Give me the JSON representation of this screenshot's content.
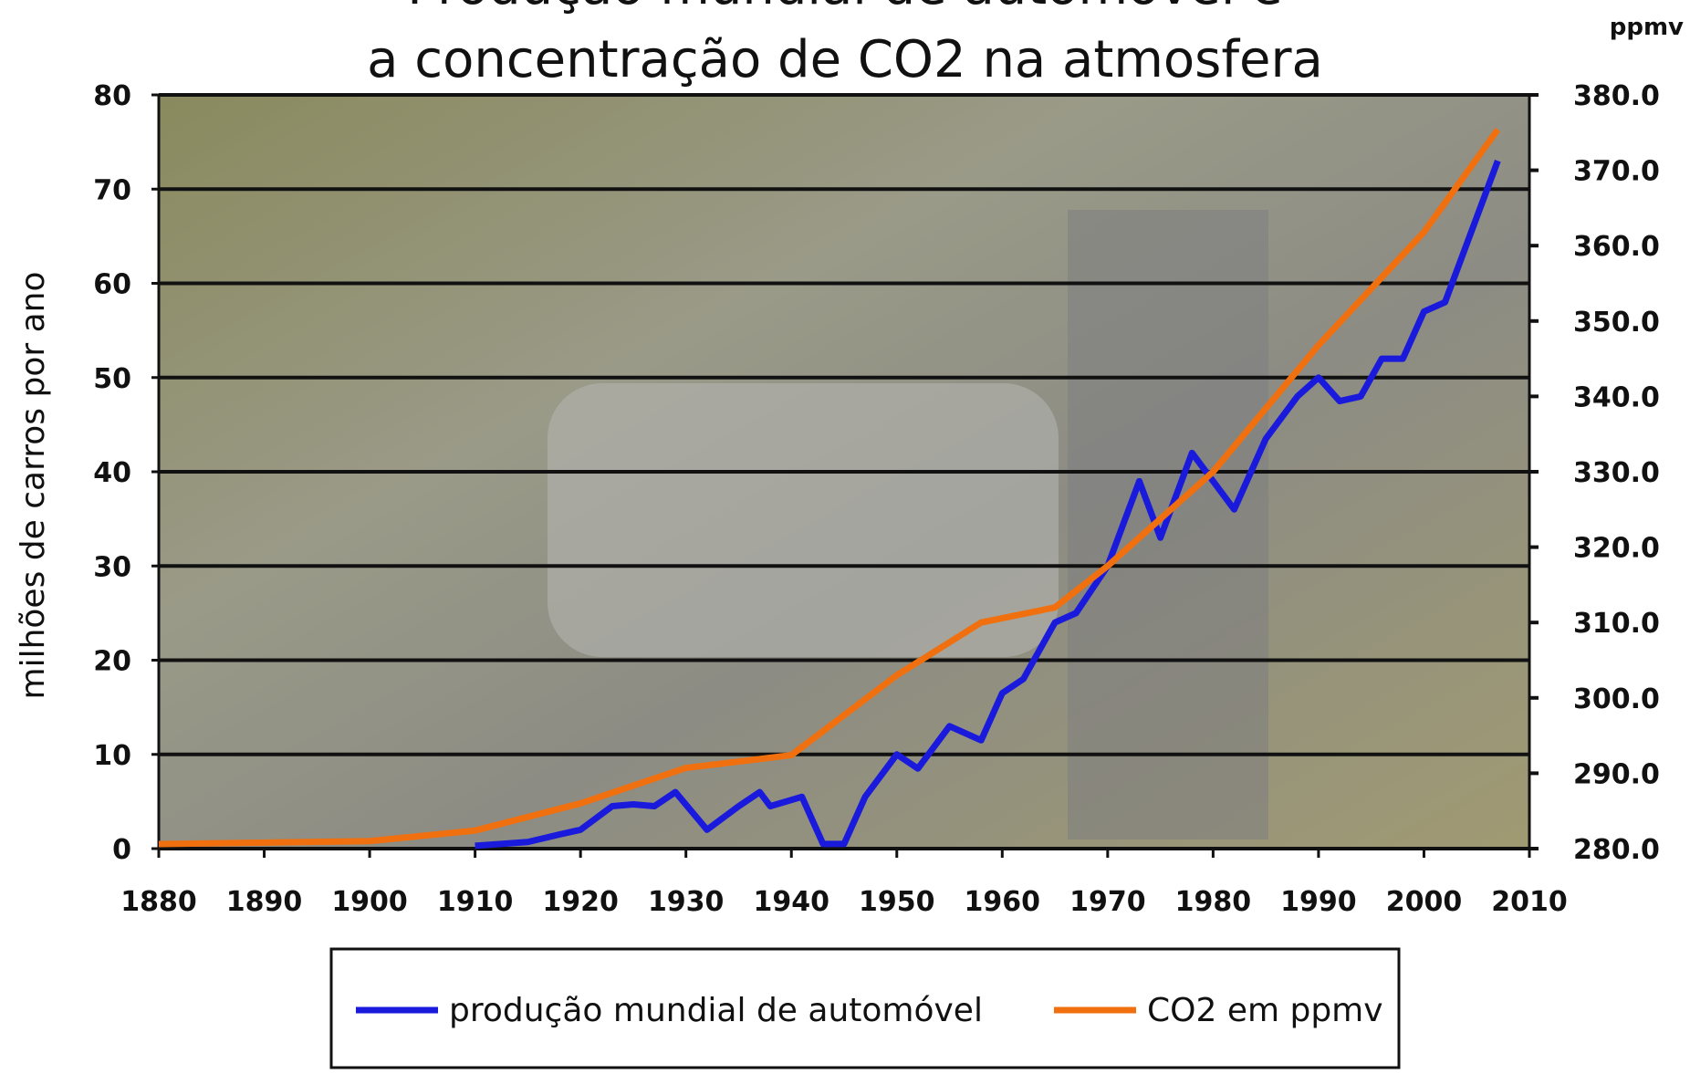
{
  "chart_data": {
    "type": "line",
    "title": [
      "Produção mundial de automóvel e",
      "a concentração de CO2 na atmosfera"
    ],
    "y_label": "milhões de carros por ano",
    "y2_label": "ppmv",
    "xlim": [
      1880,
      2010
    ],
    "xticks": [
      1880,
      1890,
      1900,
      1910,
      1920,
      1930,
      1940,
      1950,
      1960,
      1970,
      1980,
      1990,
      2000,
      2010
    ],
    "ylim": [
      0,
      80
    ],
    "yticks": [
      0,
      10,
      20,
      30,
      40,
      50,
      60,
      70,
      80
    ],
    "y2lim": [
      280,
      380
    ],
    "y2ticks": [
      {
        "value": 280,
        "label": "280.0"
      },
      {
        "value": 290,
        "label": "290.0"
      },
      {
        "value": 300,
        "label": "300.0"
      },
      {
        "value": 310,
        "label": "310.0"
      },
      {
        "value": 320,
        "label": "320.0"
      },
      {
        "value": 330,
        "label": "330.0"
      },
      {
        "value": 340,
        "label": "340.0"
      },
      {
        "value": 350,
        "label": "350.0"
      },
      {
        "value": 360,
        "label": "360.0"
      },
      {
        "value": 370,
        "label": "370.0"
      },
      {
        "value": 380,
        "label": "380.0"
      }
    ],
    "grid": true,
    "series": [
      {
        "name": "produção mundial de automóvel",
        "color": "#1a1adc",
        "x": [
          1910,
          1915,
          1918,
          1920,
          1923,
          1925,
          1927,
          1929,
          1932,
          1935,
          1937,
          1938,
          1941,
          1943,
          1945,
          1947,
          1950,
          1952,
          1955,
          1958,
          1960,
          1962,
          1965,
          1967,
          1970,
          1973,
          1975,
          1978,
          1980,
          1982,
          1985,
          1988,
          1990,
          1992,
          1994,
          1996,
          1998,
          2000,
          2002,
          2004,
          2007
        ],
        "values": [
          0.3,
          0.7,
          1.5,
          2.0,
          4.5,
          4.7,
          4.5,
          6.0,
          2.0,
          4.5,
          6.0,
          4.5,
          5.5,
          0.5,
          0.5,
          5.5,
          10,
          8.5,
          13,
          11.5,
          16.5,
          18,
          24,
          25,
          30,
          39,
          33,
          42,
          39,
          36,
          43.5,
          48,
          50,
          47.5,
          48,
          52,
          52,
          57,
          58,
          64,
          73
        ]
      },
      {
        "name": "CO2 em ppmv",
        "color": "#f07010",
        "axis": "y2",
        "x": [
          1880,
          1900,
          1910,
          1920,
          1930,
          1940,
          1950,
          1958,
          1965,
          1970,
          1980,
          1990,
          2000,
          2007
        ],
        "values": [
          280.6,
          281.0,
          282.4,
          286,
          290.7,
          292.4,
          303,
          310,
          312,
          317.5,
          330,
          346.8,
          361.8,
          375.4
        ]
      }
    ]
  }
}
